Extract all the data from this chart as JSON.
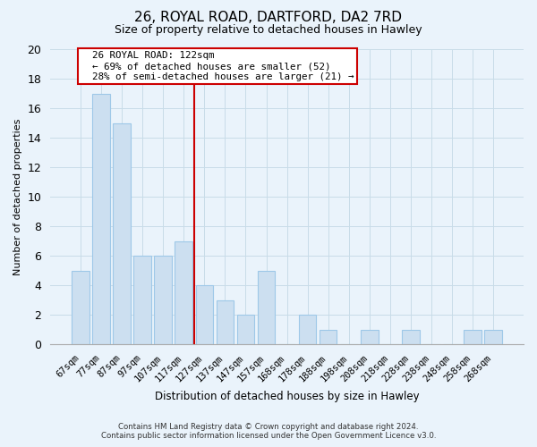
{
  "title": "26, ROYAL ROAD, DARTFORD, DA2 7RD",
  "subtitle": "Size of property relative to detached houses in Hawley",
  "xlabel": "Distribution of detached houses by size in Hawley",
  "ylabel": "Number of detached properties",
  "bar_labels": [
    "67sqm",
    "77sqm",
    "87sqm",
    "97sqm",
    "107sqm",
    "117sqm",
    "127sqm",
    "137sqm",
    "147sqm",
    "157sqm",
    "168sqm",
    "178sqm",
    "188sqm",
    "198sqm",
    "208sqm",
    "218sqm",
    "228sqm",
    "238sqm",
    "248sqm",
    "258sqm",
    "268sqm"
  ],
  "bar_values": [
    5,
    17,
    15,
    6,
    6,
    7,
    4,
    3,
    2,
    5,
    0,
    2,
    1,
    0,
    1,
    0,
    1,
    0,
    0,
    1,
    1
  ],
  "bar_color": "#ccdff0",
  "bar_edge_color": "#9ec8e8",
  "vline_color": "#cc0000",
  "vline_index": 5.5,
  "annotation_title": "26 ROYAL ROAD: 122sqm",
  "annotation_line1": "← 69% of detached houses are smaller (52)",
  "annotation_line2": "28% of semi-detached houses are larger (21) →",
  "annotation_box_color": "white",
  "annotation_box_edge": "#cc0000",
  "ylim": [
    0,
    20
  ],
  "yticks": [
    0,
    2,
    4,
    6,
    8,
    10,
    12,
    14,
    16,
    18,
    20
  ],
  "footer_line1": "Contains HM Land Registry data © Crown copyright and database right 2024.",
  "footer_line2": "Contains public sector information licensed under the Open Government Licence v3.0.",
  "grid_color": "#c8dce8",
  "background_color": "#eaf3fb"
}
